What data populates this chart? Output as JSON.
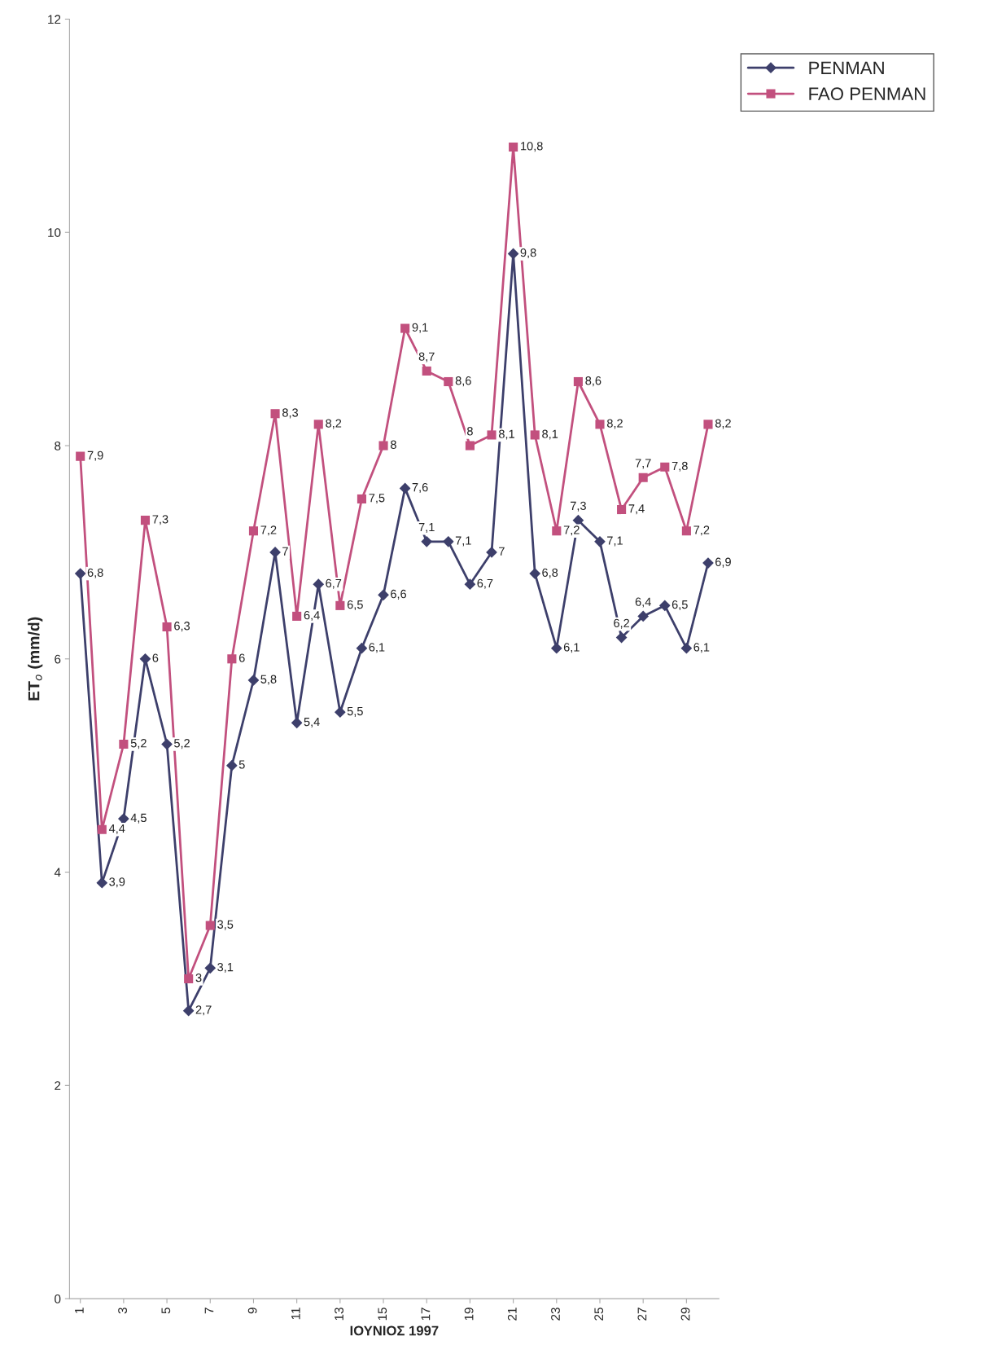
{
  "chart_data": {
    "type": "line",
    "xlabel": "ΙΟΥΝΙΟΣ 1997",
    "ylabel": "ET$_{o}$ (mm/d)",
    "x": [
      1,
      2,
      3,
      4,
      5,
      6,
      7,
      8,
      9,
      10,
      11,
      12,
      13,
      14,
      15,
      16,
      17,
      18,
      19,
      20,
      21,
      22,
      23,
      24,
      25,
      26,
      27,
      28,
      29,
      30
    ],
    "xlim": [
      0.5,
      30.5
    ],
    "xticks": [
      1,
      3,
      5,
      7,
      9,
      11,
      13,
      15,
      17,
      19,
      21,
      23,
      25,
      27,
      29
    ],
    "ylim": [
      0,
      12
    ],
    "yticks": [
      0,
      2,
      4,
      6,
      8,
      10,
      12
    ],
    "grid": false,
    "legend": "top right",
    "series": [
      {
        "name": "PENMAN",
        "color": "#3d3f6b",
        "marker": "diamond",
        "values": [
          6.8,
          3.9,
          4.5,
          6,
          5.2,
          2.7,
          3.1,
          5,
          5.8,
          7,
          5.4,
          6.7,
          5.5,
          6.1,
          6.6,
          7.6,
          7.1,
          7.1,
          6.7,
          7,
          9.8,
          6.8,
          6.1,
          7.3,
          7.1,
          6.2,
          6.4,
          6.5,
          6.1,
          6.9
        ],
        "value_labels": [
          "6,8",
          "3,9",
          "4,5",
          "6",
          "5,2",
          "2,7",
          "3,1",
          "5",
          "5,8",
          "7",
          "5,4",
          "6,7",
          "5,5",
          "6,1",
          "6,6",
          "7,6",
          "7,1",
          "7,1",
          "6,7",
          "7",
          "9,8",
          "6,8",
          "6,1",
          "7,3",
          "7,1",
          "6,2",
          "6,4",
          "6,5",
          "6,1",
          "6,9"
        ]
      },
      {
        "name": "FAO PENMAN",
        "color": "#c2507e",
        "marker": "square",
        "values": [
          7.9,
          4.4,
          5.2,
          7.3,
          6.3,
          3,
          3.5,
          6,
          7.2,
          8.3,
          6.4,
          8.2,
          6.5,
          7.5,
          8,
          9.1,
          8.7,
          8.6,
          8,
          8.1,
          10.8,
          8.1,
          7.2,
          8.6,
          8.2,
          7.4,
          7.7,
          7.8,
          7.2,
          8.2
        ],
        "value_labels": [
          "7,9",
          "4,4",
          "5,2",
          "7,3",
          "6,3",
          "3",
          "3,5",
          "6",
          "7,2",
          "8,3",
          "6,4",
          "8,2",
          "6,5",
          "7,5",
          "8",
          "9,1",
          "8,7",
          "8,6",
          "8",
          "8,1",
          "10,8",
          "8,1",
          "7,2",
          "8,6",
          "8,2",
          "7,4",
          "7,7",
          "7,8",
          "7,2",
          "8,2"
        ]
      }
    ]
  }
}
